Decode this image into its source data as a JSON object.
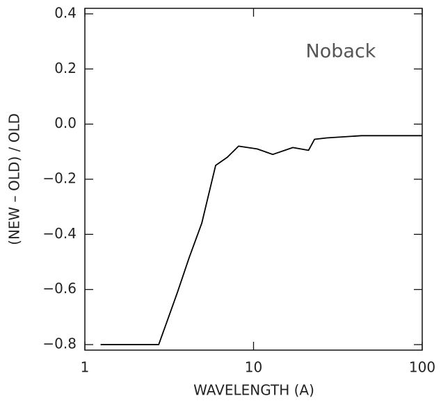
{
  "chart_data": {
    "type": "line",
    "annotation": "Noback",
    "x_label": "WAVELENGTH (A)",
    "y_label": "(NEW – OLD) / OLD",
    "x": [
      1.24,
      2.74,
      3.07,
      3.54,
      4.15,
      4.93,
      5.96,
      7.0,
      8.15,
      10.5,
      13.0,
      17.1,
      21.2,
      23.0,
      27.2,
      43.7,
      100
    ],
    "series": [
      {
        "color": "#000000",
        "values": [
          -0.8,
          -0.8,
          -0.716,
          -0.61,
          -0.485,
          -0.36,
          -0.15,
          -0.12,
          -0.08,
          -0.09,
          -0.11,
          -0.085,
          -0.095,
          -0.055,
          -0.05,
          -0.042,
          -0.042
        ]
      }
    ],
    "xlog": true,
    "xlim": [
      1,
      100
    ],
    "xticks": [
      1,
      10,
      100
    ],
    "ylim": [
      -0.82,
      0.42
    ],
    "yticks": [
      {
        "value": -0.8,
        "label": "−0.8"
      },
      {
        "value": -0.6,
        "label": "−0.6"
      },
      {
        "value": -0.4,
        "label": "−0.4"
      },
      {
        "value": -0.2,
        "label": "−0.2"
      },
      {
        "value": 0,
        "label": "0.0"
      },
      0.2,
      0.4
    ]
  }
}
